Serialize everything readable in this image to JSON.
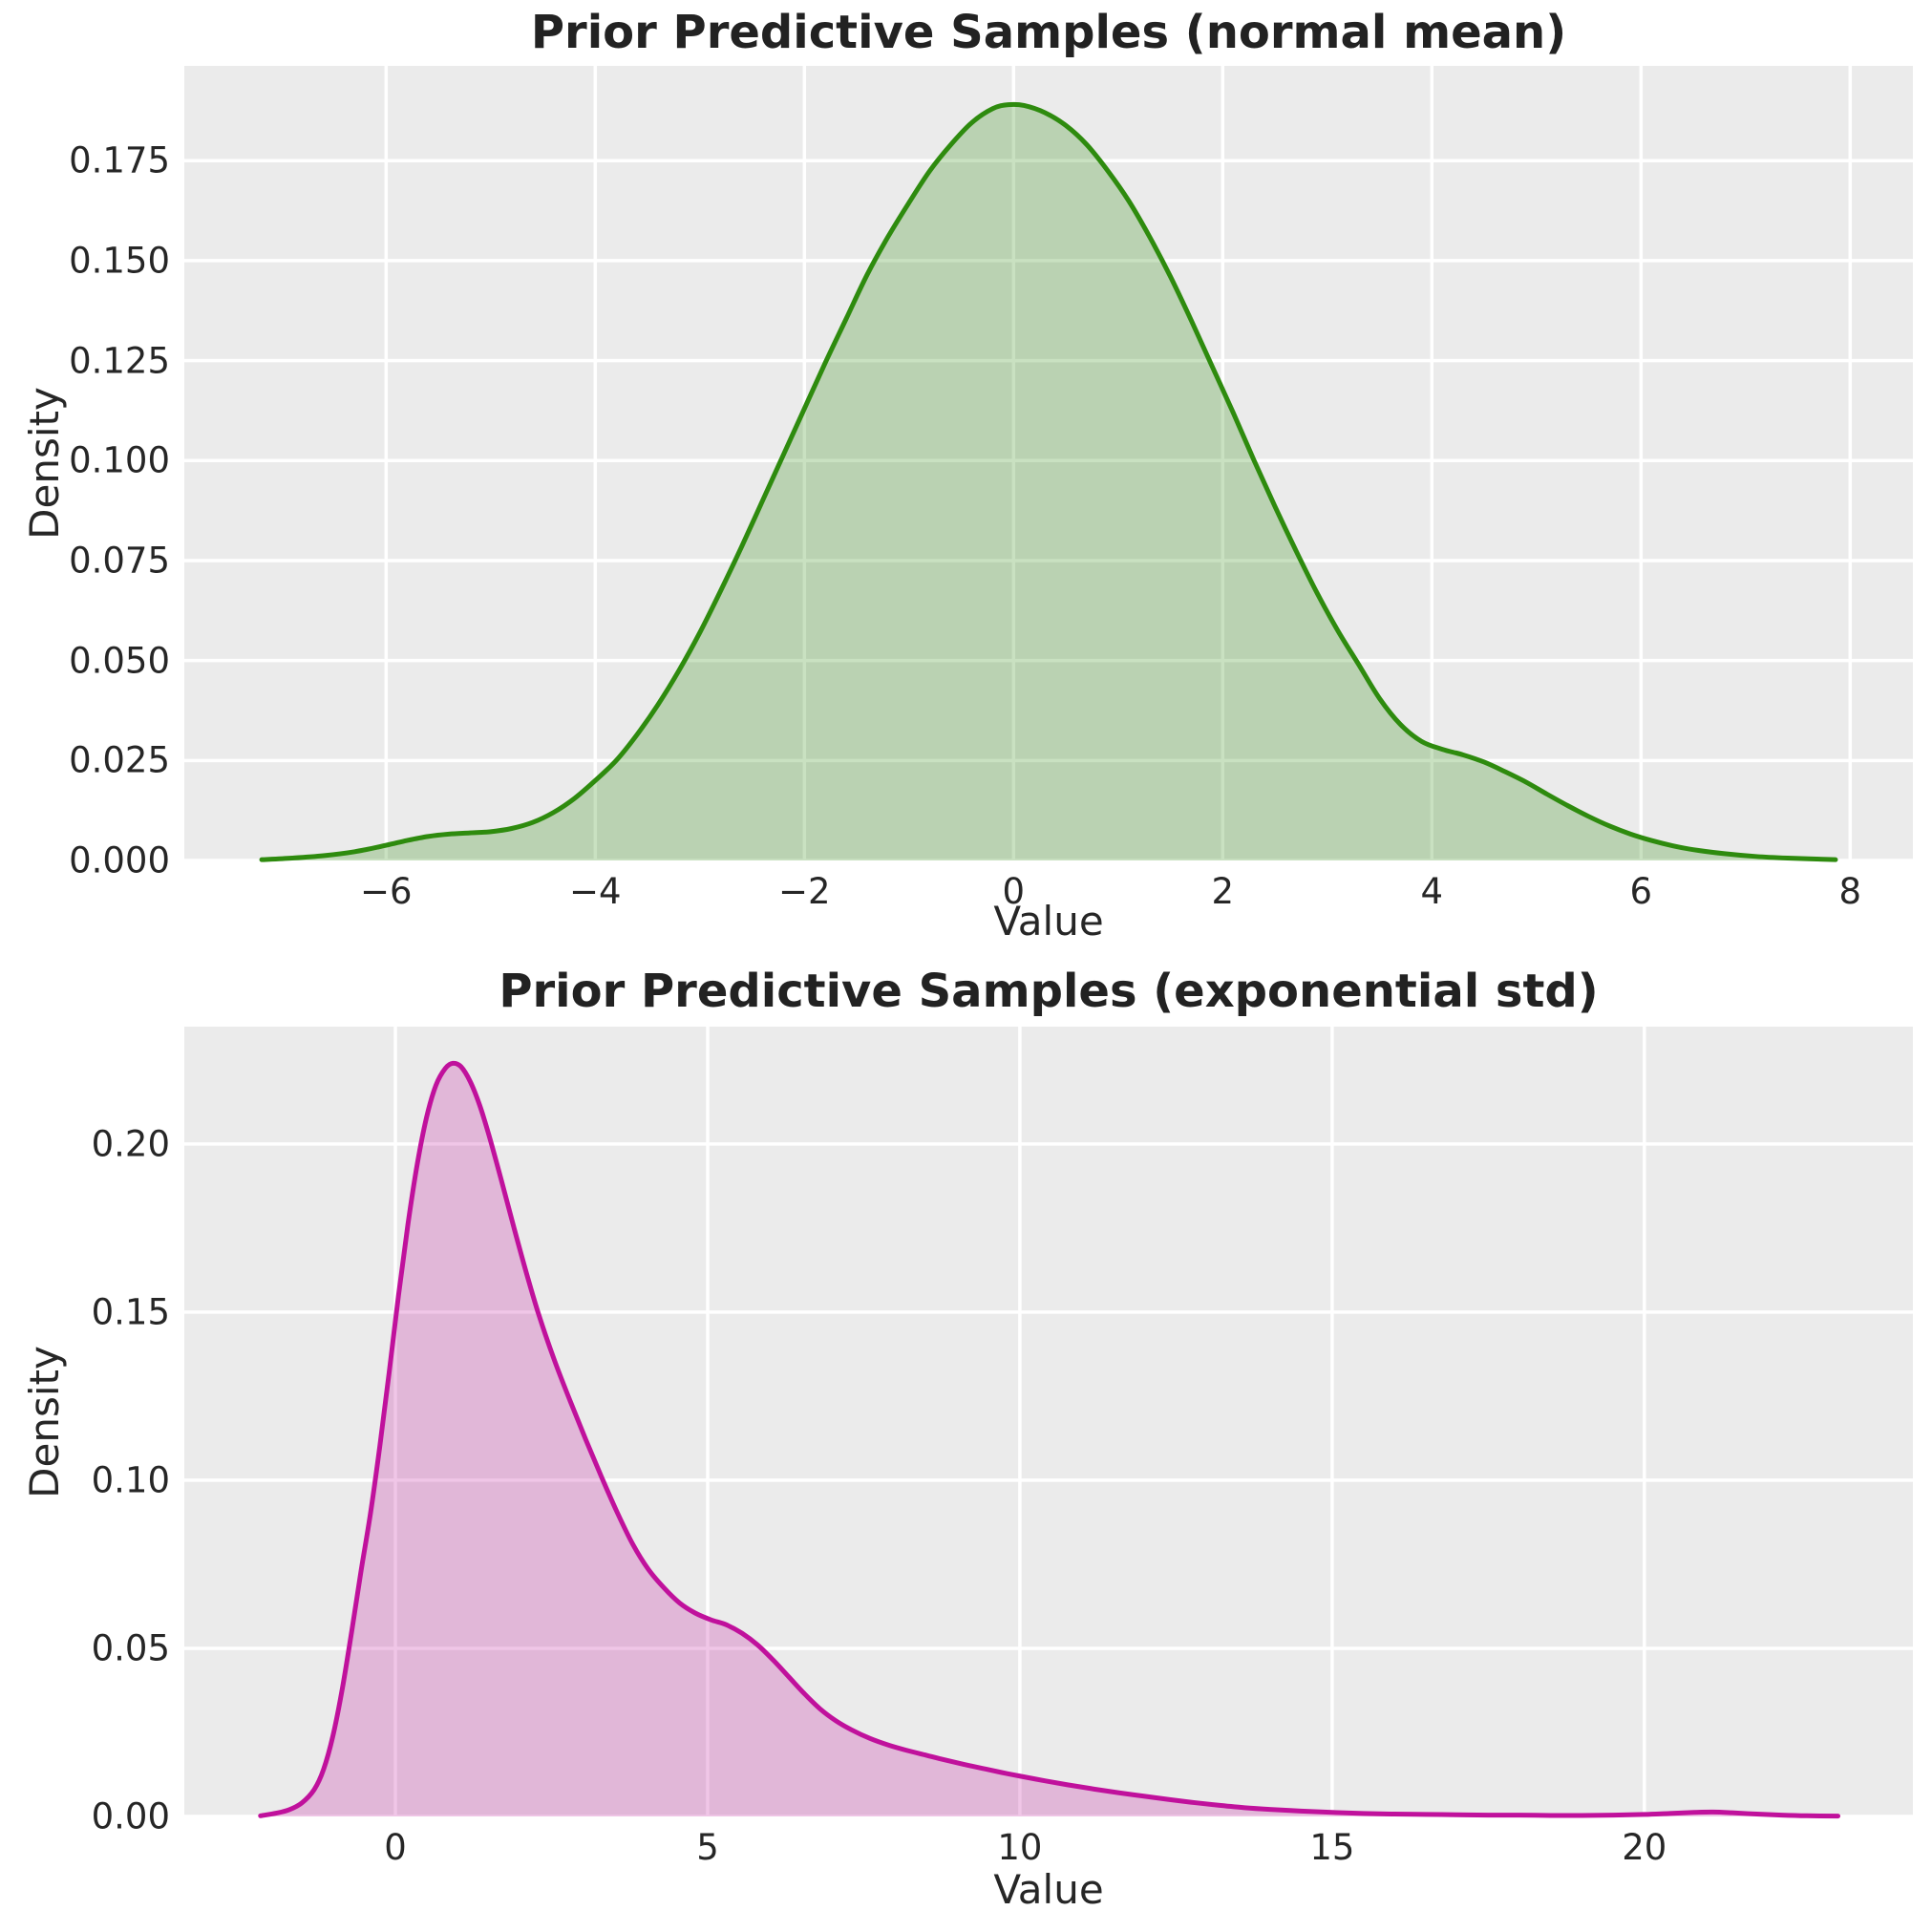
{
  "page": {
    "background": "#ffffff",
    "axes_background": "#ebebeb",
    "grid_color": "#ffffff",
    "text_color": "#262626"
  },
  "chart_data": [
    {
      "type": "area",
      "kind": "kde-density",
      "title": "Prior Predictive Samples (normal mean)",
      "xlabel": "Value",
      "ylabel": "Density",
      "grid": true,
      "legend": null,
      "line_color": "#2e8b0e",
      "fill_color": "rgba(46,139,14,0.26)",
      "xlim": [
        -7.93,
        8.6
      ],
      "ylim": [
        0,
        0.1987
      ],
      "xticks": {
        "values": [
          -6,
          -4,
          -2,
          0,
          2,
          4,
          6,
          8
        ],
        "labels": [
          "−6",
          "−4",
          "−2",
          "0",
          "2",
          "4",
          "6",
          "8"
        ]
      },
      "yticks": {
        "values": [
          0,
          0.025,
          0.05,
          0.075,
          0.1,
          0.125,
          0.15,
          0.175
        ],
        "labels": [
          "0.000",
          "0.025",
          "0.050",
          "0.075",
          "0.100",
          "0.125",
          "0.150",
          "0.175"
        ]
      },
      "points": [
        [
          -7.19,
          0.0002
        ],
        [
          -6.9,
          0.0006
        ],
        [
          -6.6,
          0.0012
        ],
        [
          -6.3,
          0.0022
        ],
        [
          -6.0,
          0.0038
        ],
        [
          -5.8,
          0.005
        ],
        [
          -5.6,
          0.006
        ],
        [
          -5.4,
          0.0066
        ],
        [
          -5.2,
          0.0069
        ],
        [
          -5.0,
          0.0072
        ],
        [
          -4.8,
          0.008
        ],
        [
          -4.6,
          0.0095
        ],
        [
          -4.4,
          0.012
        ],
        [
          -4.2,
          0.0155
        ],
        [
          -4.0,
          0.02
        ],
        [
          -3.8,
          0.025
        ],
        [
          -3.6,
          0.0315
        ],
        [
          -3.4,
          0.039
        ],
        [
          -3.2,
          0.0475
        ],
        [
          -3.0,
          0.057
        ],
        [
          -2.8,
          0.0675
        ],
        [
          -2.6,
          0.0785
        ],
        [
          -2.4,
          0.09
        ],
        [
          -2.2,
          0.1015
        ],
        [
          -2.0,
          0.113
        ],
        [
          -1.8,
          0.1245
        ],
        [
          -1.6,
          0.1355
        ],
        [
          -1.4,
          0.1465
        ],
        [
          -1.2,
          0.156
        ],
        [
          -1.0,
          0.1645
        ],
        [
          -0.8,
          0.1725
        ],
        [
          -0.6,
          0.179
        ],
        [
          -0.4,
          0.1845
        ],
        [
          -0.2,
          0.188
        ],
        [
          -0.05,
          0.189
        ],
        [
          0.1,
          0.1888
        ],
        [
          0.3,
          0.187
        ],
        [
          0.5,
          0.1838
        ],
        [
          0.7,
          0.179
        ],
        [
          0.9,
          0.1725
        ],
        [
          1.1,
          0.165
        ],
        [
          1.3,
          0.156
        ],
        [
          1.5,
          0.146
        ],
        [
          1.7,
          0.135
        ],
        [
          1.9,
          0.1235
        ],
        [
          2.1,
          0.112
        ],
        [
          2.3,
          0.1
        ],
        [
          2.5,
          0.0885
        ],
        [
          2.7,
          0.0775
        ],
        [
          2.9,
          0.067
        ],
        [
          3.1,
          0.0575
        ],
        [
          3.3,
          0.049
        ],
        [
          3.5,
          0.0405
        ],
        [
          3.7,
          0.034
        ],
        [
          3.9,
          0.0298
        ],
        [
          4.1,
          0.0278
        ],
        [
          4.3,
          0.0264
        ],
        [
          4.5,
          0.0246
        ],
        [
          4.7,
          0.0222
        ],
        [
          4.9,
          0.0196
        ],
        [
          5.1,
          0.0166
        ],
        [
          5.3,
          0.0137
        ],
        [
          5.5,
          0.011
        ],
        [
          5.7,
          0.0086
        ],
        [
          5.9,
          0.0066
        ],
        [
          6.1,
          0.005
        ],
        [
          6.3,
          0.0037
        ],
        [
          6.5,
          0.0027
        ],
        [
          6.8,
          0.0017
        ],
        [
          7.1,
          0.001
        ],
        [
          7.4,
          0.0006
        ],
        [
          7.86,
          0.0002
        ]
      ]
    },
    {
      "type": "area",
      "kind": "kde-density",
      "title": "Prior Predictive Samples (exponential std)",
      "xlabel": "Value",
      "ylabel": "Density",
      "grid": true,
      "legend": null,
      "line_color": "#c0119c",
      "fill_color": "rgba(192,17,156,0.24)",
      "xlim": [
        -3.38,
        24.3
      ],
      "ylim": [
        0,
        0.2349
      ],
      "xticks": {
        "values": [
          0,
          5,
          10,
          15,
          20
        ],
        "labels": [
          "0",
          "5",
          "10",
          "15",
          "20"
        ]
      },
      "yticks": {
        "values": [
          0,
          0.05,
          0.1,
          0.15,
          0.2
        ],
        "labels": [
          "0.00",
          "0.05",
          "0.10",
          "0.15",
          "0.20"
        ]
      },
      "points": [
        [
          -2.16,
          0.0002
        ],
        [
          -1.9,
          0.001
        ],
        [
          -1.7,
          0.002
        ],
        [
          -1.5,
          0.004
        ],
        [
          -1.3,
          0.008
        ],
        [
          -1.15,
          0.014
        ],
        [
          -1.0,
          0.024
        ],
        [
          -0.85,
          0.038
        ],
        [
          -0.7,
          0.055
        ],
        [
          -0.55,
          0.073
        ],
        [
          -0.4,
          0.09
        ],
        [
          -0.25,
          0.11
        ],
        [
          -0.1,
          0.132
        ],
        [
          0.05,
          0.155
        ],
        [
          0.2,
          0.176
        ],
        [
          0.35,
          0.194
        ],
        [
          0.5,
          0.208
        ],
        [
          0.65,
          0.2175
        ],
        [
          0.8,
          0.2225
        ],
        [
          0.92,
          0.224
        ],
        [
          1.05,
          0.223
        ],
        [
          1.2,
          0.2185
        ],
        [
          1.35,
          0.2115
        ],
        [
          1.5,
          0.2025
        ],
        [
          1.7,
          0.189
        ],
        [
          1.9,
          0.175
        ],
        [
          2.1,
          0.1615
        ],
        [
          2.3,
          0.149
        ],
        [
          2.55,
          0.1355
        ],
        [
          2.8,
          0.1235
        ],
        [
          3.05,
          0.112
        ],
        [
          3.3,
          0.101
        ],
        [
          3.55,
          0.0905
        ],
        [
          3.8,
          0.081
        ],
        [
          4.05,
          0.0735
        ],
        [
          4.3,
          0.068
        ],
        [
          4.55,
          0.0635
        ],
        [
          4.8,
          0.0605
        ],
        [
          5.05,
          0.0585
        ],
        [
          5.3,
          0.057
        ],
        [
          5.55,
          0.0545
        ],
        [
          5.8,
          0.051
        ],
        [
          6.05,
          0.0465
        ],
        [
          6.3,
          0.0415
        ],
        [
          6.55,
          0.0365
        ],
        [
          6.8,
          0.032
        ],
        [
          7.05,
          0.0285
        ],
        [
          7.3,
          0.0258
        ],
        [
          7.6,
          0.0232
        ],
        [
          7.9,
          0.0212
        ],
        [
          8.2,
          0.0196
        ],
        [
          8.5,
          0.0182
        ],
        [
          8.8,
          0.0168
        ],
        [
          9.1,
          0.0155
        ],
        [
          9.4,
          0.0143
        ],
        [
          9.7,
          0.0131
        ],
        [
          10.0,
          0.012
        ],
        [
          10.4,
          0.0106
        ],
        [
          10.8,
          0.0093
        ],
        [
          11.2,
          0.0081
        ],
        [
          11.6,
          0.007
        ],
        [
          12.0,
          0.006
        ],
        [
          12.4,
          0.005
        ],
        [
          12.8,
          0.0041
        ],
        [
          13.2,
          0.0033
        ],
        [
          13.6,
          0.0026
        ],
        [
          14.0,
          0.0021
        ],
        [
          14.5,
          0.0016
        ],
        [
          15.0,
          0.0012
        ],
        [
          15.5,
          0.0009
        ],
        [
          16.0,
          0.0007
        ],
        [
          16.5,
          0.0006
        ],
        [
          17.0,
          0.0005
        ],
        [
          17.5,
          0.0004
        ],
        [
          18.0,
          0.0004
        ],
        [
          18.5,
          0.0003
        ],
        [
          19.0,
          0.0003
        ],
        [
          19.5,
          0.0004
        ],
        [
          20.0,
          0.0006
        ],
        [
          20.4,
          0.0009
        ],
        [
          20.8,
          0.0012
        ],
        [
          21.1,
          0.0013
        ],
        [
          21.4,
          0.0011
        ],
        [
          21.8,
          0.0007
        ],
        [
          22.2,
          0.0004
        ],
        [
          22.6,
          0.0002
        ],
        [
          23.1,
          0.0001
        ]
      ]
    }
  ]
}
